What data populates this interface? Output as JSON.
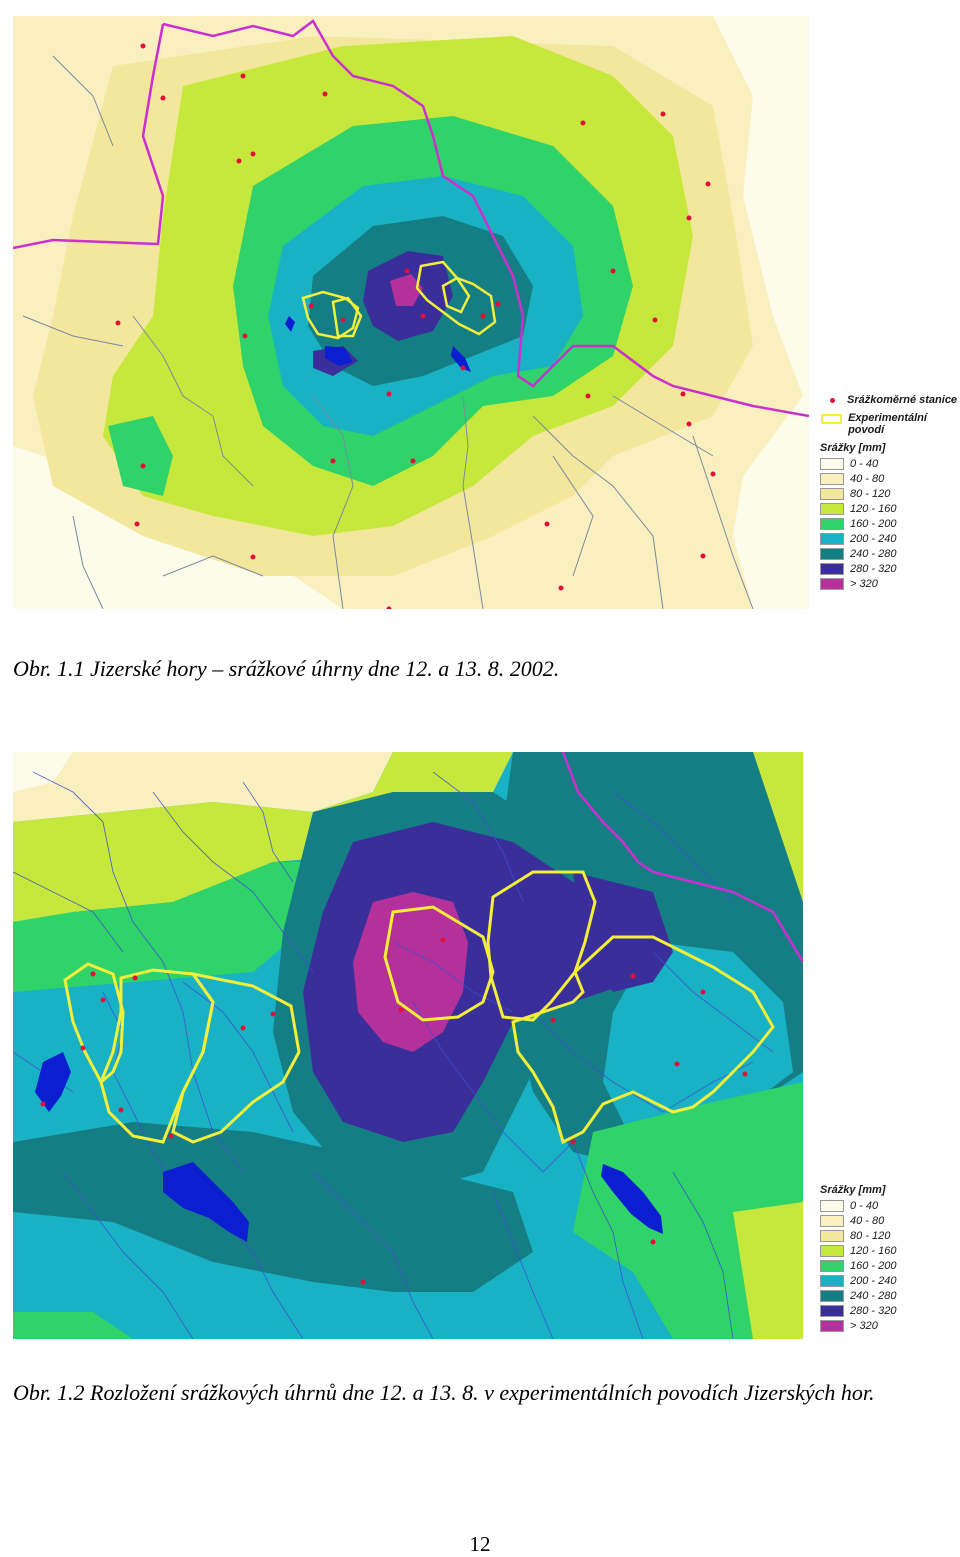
{
  "figure1": {
    "caption": "Obr. 1.1 Jizerské hory – srážkové úhrny dne 12. a 13. 8. 2002.",
    "legend": {
      "stations_label": "Srážkoměrné stanice",
      "basins_label": "Experimentální povodí",
      "title": "Srážky [mm]"
    }
  },
  "figure2": {
    "caption": "Obr. 1.2 Rozložení srážkových úhrnů dne 12. a 13. 8. v experimentálních povodích Jizerských hor.",
    "legend": {
      "title": "Srážky [mm]"
    }
  },
  "legend_classes": [
    {
      "label": "0 - 40",
      "color": "#fdfbea"
    },
    {
      "label": "40 - 80",
      "color": "#faf0bf"
    },
    {
      "label": "80 - 120",
      "color": "#f3e79d"
    },
    {
      "label": "120 - 160",
      "color": "#c6e83c"
    },
    {
      "label": "160 - 200",
      "color": "#2fd36a"
    },
    {
      "label": "200 - 240",
      "color": "#18b2c4"
    },
    {
      "label": "240 - 280",
      "color": "#157d84"
    },
    {
      "label": "280 - 320",
      "color": "#3a2f9a"
    },
    {
      "label": "> 320",
      "color": "#b4309a"
    }
  ],
  "page_number": "12"
}
